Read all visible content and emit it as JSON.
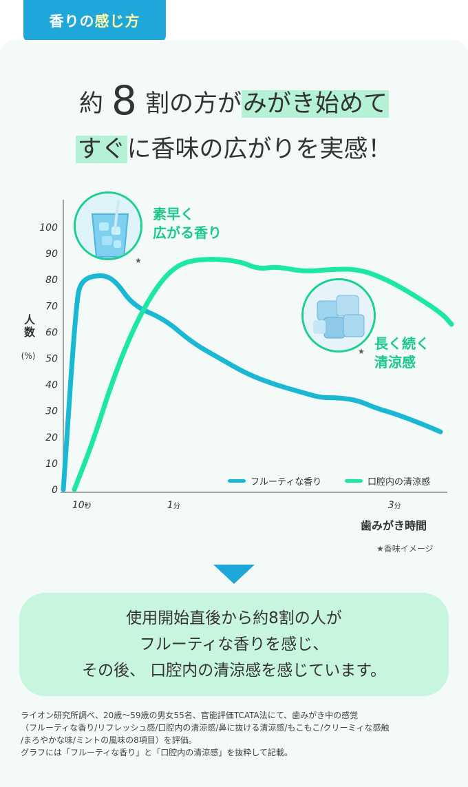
{
  "tab": {
    "prefix": "香りの",
    "highlight": "感じ方"
  },
  "headline": {
    "line1_pre": "約",
    "line1_num": "8",
    "line1_mid": "割の方が",
    "line1_mark": "みがき始めて",
    "line2_mark": "すぐ",
    "line2_rest": "に香味の広がりを実感！"
  },
  "chart_data": {
    "type": "line",
    "ylabel": "人数",
    "yunit": "(%)",
    "xlabel": "歯みがき時間",
    "ylim": [
      0,
      100
    ],
    "yticks": [
      "0",
      "10",
      "20",
      "30",
      "40",
      "50",
      "60",
      "70",
      "80",
      "90",
      "100"
    ],
    "xticks": [
      {
        "label": "10",
        "suffix": "秒",
        "t": 10
      },
      {
        "label": "1",
        "suffix": "分",
        "t": 60
      },
      {
        "label": "3",
        "suffix": "分",
        "t": 180
      }
    ],
    "series": [
      {
        "name": "フルーティな香り",
        "color": "#1ab8d2",
        "points": [
          [
            0,
            0
          ],
          [
            7,
            72
          ],
          [
            10,
            80
          ],
          [
            20,
            82
          ],
          [
            28,
            80
          ],
          [
            38,
            70
          ],
          [
            55,
            65
          ],
          [
            70,
            56
          ],
          [
            85,
            50
          ],
          [
            100,
            44
          ],
          [
            115,
            40
          ],
          [
            130,
            37
          ],
          [
            140,
            35
          ],
          [
            150,
            35
          ],
          [
            160,
            34
          ],
          [
            170,
            31
          ],
          [
            180,
            29
          ],
          [
            195,
            25
          ],
          [
            205,
            22
          ]
        ]
      },
      {
        "name": "口腔内の清涼感",
        "color": "#1de7a4",
        "points": [
          [
            0,
            0
          ],
          [
            10,
            18
          ],
          [
            20,
            40
          ],
          [
            30,
            58
          ],
          [
            40,
            72
          ],
          [
            50,
            82
          ],
          [
            60,
            87
          ],
          [
            75,
            88
          ],
          [
            90,
            87
          ],
          [
            100,
            84
          ],
          [
            110,
            85
          ],
          [
            125,
            83
          ],
          [
            140,
            84
          ],
          [
            155,
            84
          ],
          [
            170,
            80
          ],
          [
            185,
            74
          ],
          [
            200,
            67
          ],
          [
            205,
            63
          ]
        ]
      }
    ]
  },
  "annotations": {
    "fast": [
      "素早く",
      "広がる香り"
    ],
    "long": [
      "長く続く",
      "清涼感"
    ],
    "star": "★"
  },
  "note": "★香味イメージ",
  "summary": [
    "使用開始直後から約8割の人が",
    "フルーティな香りを感じ、",
    "その後、 口腔内の清涼感を感じています。"
  ],
  "footnote": [
    "ライオン研究所調べ、20歳〜59歳の男女55名、官能評価TCATA法にて、歯みがき中の感覚",
    "（フルーティな香り/リフレッシュ感/口腔内の清涼感/鼻に抜ける清涼感/もこもこ/クリーミィな感触",
    "/まろやかな味/ミントの風味の8項目）を評価。",
    "グラフには「フルーティな香り」と「口腔内の清涼感」を抜粋して記載。"
  ]
}
